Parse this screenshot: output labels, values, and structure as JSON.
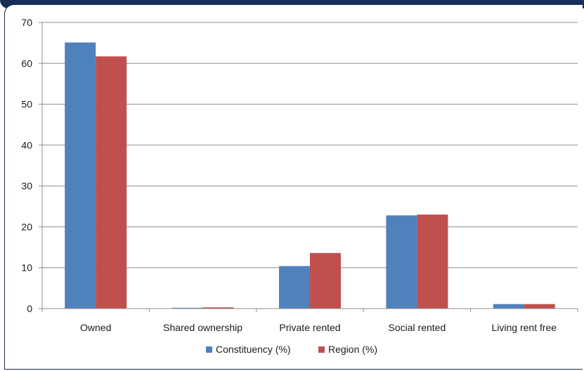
{
  "chart_data": {
    "type": "bar",
    "categories": [
      "Owned",
      "Shared ownership",
      "Private rented",
      "Social rented",
      "Living rent free"
    ],
    "series": [
      {
        "name": "Constituency (%)",
        "color": "#4f81bd",
        "values": [
          65.1,
          0.2,
          10.4,
          22.8,
          1.1
        ]
      },
      {
        "name": "Region (%)",
        "color": "#c0504d",
        "values": [
          61.7,
          0.3,
          13.6,
          23.0,
          1.1
        ]
      }
    ],
    "ylim": [
      0,
      70
    ],
    "yticks": [
      0,
      10,
      20,
      30,
      40,
      50,
      60,
      70
    ],
    "grid": true,
    "legend": "bottom",
    "title": "",
    "xlabel": "",
    "ylabel": ""
  }
}
